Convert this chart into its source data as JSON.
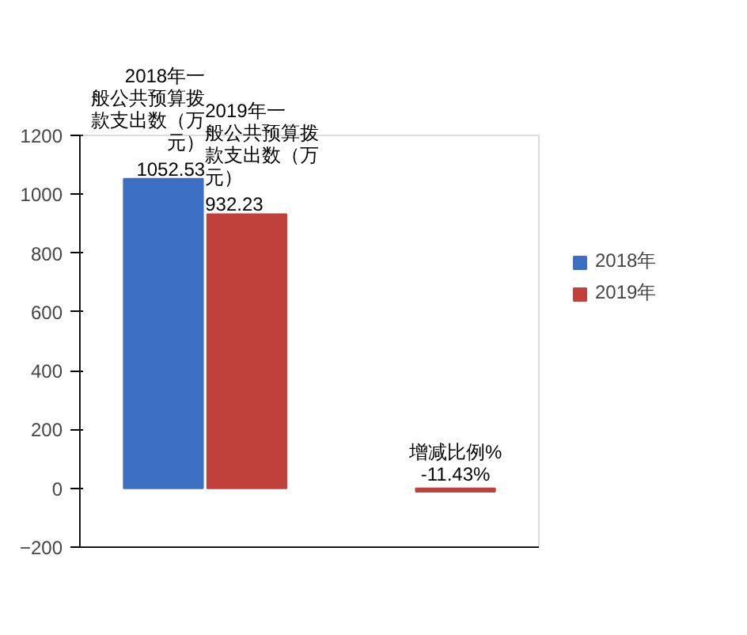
{
  "chart_data": {
    "type": "bar",
    "categories": [
      null,
      null
    ],
    "series": [
      {
        "name": "2018年",
        "color": "#3c6fc4",
        "values": [
          1052.53,
          null
        ],
        "value_labels": [
          "2018年一般公共预算拨款支出数（万元）\n1052.53",
          null
        ]
      },
      {
        "name": "2019年",
        "color": "#c0413c",
        "values": [
          932.23,
          -11.43
        ],
        "value_labels": [
          "2019年一般公共预算拨款支出数（万元）\n932.23",
          "增减比例%\n-11.43%"
        ]
      }
    ],
    "ylim": [
      -200,
      1200
    ],
    "yticks": [
      -200,
      0,
      200,
      400,
      600,
      800,
      1000,
      1200
    ],
    "grid": false,
    "legend": "right",
    "tick_labels": "y"
  }
}
